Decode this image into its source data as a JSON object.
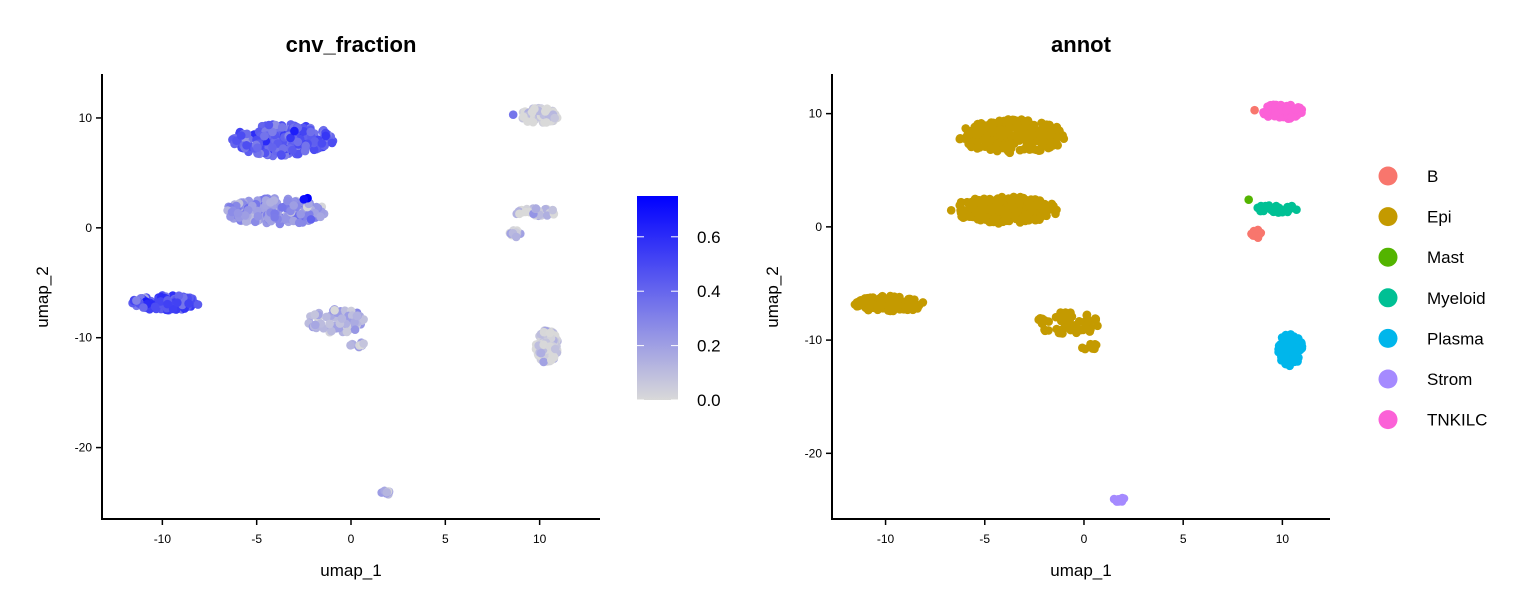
{
  "chart_data": [
    {
      "type": "scatter",
      "title": "cnv_fraction",
      "xlabel": "umap_1",
      "ylabel": "umap_2",
      "xlim": [
        -13.2,
        13.2
      ],
      "ylim": [
        -26.5,
        14
      ],
      "xticks": [
        -10,
        -5,
        0,
        5,
        10
      ],
      "yticks": [
        10,
        0,
        -10,
        -20
      ],
      "colorbar": {
        "min": 0.0,
        "max": 0.75,
        "ticks": [
          0.0,
          0.2,
          0.4,
          0.6
        ],
        "low_color": "#d9d9d9",
        "high_color": "#0000ff"
      },
      "clusters": [
        {
          "cx": -3.6,
          "cy": 8.0,
          "rx": 2.7,
          "ry": 1.5,
          "n": 240,
          "value": 0.42
        },
        {
          "cx": -4.0,
          "cy": 1.5,
          "rx": 2.7,
          "ry": 1.2,
          "n": 220,
          "value": 0.22
        },
        {
          "cx": -9.8,
          "cy": -6.8,
          "rx": 1.8,
          "ry": 0.7,
          "n": 110,
          "value": 0.48
        },
        {
          "cx": -0.8,
          "cy": -8.5,
          "rx": 1.6,
          "ry": 1.1,
          "n": 60,
          "value": 0.12
        },
        {
          "cx": 0.3,
          "cy": -10.6,
          "rx": 0.4,
          "ry": 0.3,
          "n": 12,
          "value": 0.12
        },
        {
          "cx": 1.8,
          "cy": -24.1,
          "rx": 0.3,
          "ry": 0.2,
          "n": 8,
          "value": 0.15
        },
        {
          "cx": 10.0,
          "cy": 10.2,
          "rx": 1.0,
          "ry": 0.7,
          "n": 80,
          "value": 0.03
        },
        {
          "cx": 9.8,
          "cy": 1.4,
          "rx": 1.1,
          "ry": 0.4,
          "n": 30,
          "value": 0.05
        },
        {
          "cx": 8.7,
          "cy": -0.6,
          "rx": 0.3,
          "ry": 0.4,
          "n": 12,
          "value": 0.05
        },
        {
          "cx": 10.4,
          "cy": -10.8,
          "rx": 0.6,
          "ry": 1.5,
          "n": 95,
          "value": 0.02
        }
      ],
      "highlights": [
        {
          "x": -2.3,
          "y": 2.7,
          "value": 0.75
        },
        {
          "x": -2.5,
          "y": 2.6,
          "value": 0.7
        },
        {
          "x": -3.0,
          "y": 8.8,
          "value": 0.65
        },
        {
          "x": 8.6,
          "y": 10.3,
          "value": 0.35
        }
      ]
    },
    {
      "type": "scatter",
      "title": "annot",
      "xlabel": "umap_1",
      "ylabel": "umap_2",
      "xlim": [
        -12.7,
        12.4
      ],
      "ylim": [
        -25.8,
        13.5
      ],
      "xticks": [
        -10,
        -5,
        0,
        5,
        10
      ],
      "yticks": [
        10,
        0,
        -10,
        -20
      ],
      "legend": {
        "position": "right",
        "entries": [
          {
            "label": "B",
            "color": "#F8766D"
          },
          {
            "label": "Epi",
            "color": "#C49A00"
          },
          {
            "label": "Mast",
            "color": "#53B400"
          },
          {
            "label": "Myeloid",
            "color": "#00C094"
          },
          {
            "label": "Plasma",
            "color": "#00B6EB"
          },
          {
            "label": "Strom",
            "color": "#A58AFF"
          },
          {
            "label": "TNKILC",
            "color": "#FB61D7"
          }
        ]
      },
      "clusters": [
        {
          "cx": -3.6,
          "cy": 8.0,
          "rx": 2.7,
          "ry": 1.5,
          "n": 240,
          "label": "Epi"
        },
        {
          "cx": -4.0,
          "cy": 1.5,
          "rx": 2.7,
          "ry": 1.2,
          "n": 220,
          "label": "Epi"
        },
        {
          "cx": -9.8,
          "cy": -6.8,
          "rx": 1.8,
          "ry": 0.7,
          "n": 110,
          "label": "Epi"
        },
        {
          "cx": -0.8,
          "cy": -8.5,
          "rx": 1.6,
          "ry": 1.1,
          "n": 60,
          "label": "Epi"
        },
        {
          "cx": 0.3,
          "cy": -10.6,
          "rx": 0.4,
          "ry": 0.3,
          "n": 12,
          "label": "Epi"
        },
        {
          "cx": 1.8,
          "cy": -24.1,
          "rx": 0.3,
          "ry": 0.2,
          "n": 8,
          "label": "Strom"
        },
        {
          "cx": 10.0,
          "cy": 10.2,
          "rx": 1.0,
          "ry": 0.7,
          "n": 80,
          "label": "TNKILC"
        },
        {
          "cx": 9.8,
          "cy": 1.6,
          "rx": 1.1,
          "ry": 0.4,
          "n": 30,
          "label": "Myeloid"
        },
        {
          "cx": 8.7,
          "cy": -0.6,
          "rx": 0.3,
          "ry": 0.4,
          "n": 12,
          "label": "B"
        },
        {
          "cx": 10.4,
          "cy": -10.8,
          "rx": 0.6,
          "ry": 1.5,
          "n": 95,
          "label": "Plasma"
        }
      ],
      "highlights": [
        {
          "x": 8.6,
          "y": 10.3,
          "label": "B"
        },
        {
          "x": 8.3,
          "y": 2.4,
          "label": "Mast"
        }
      ]
    }
  ]
}
